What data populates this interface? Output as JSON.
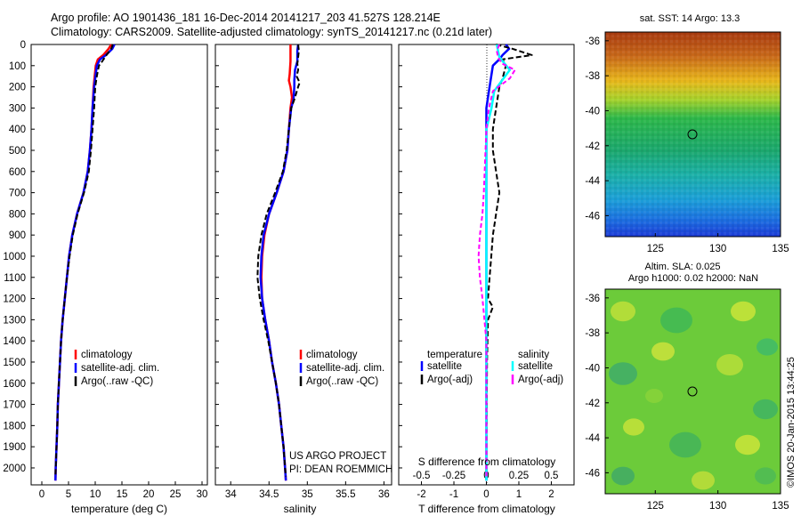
{
  "header": {
    "line1": "Argo profile: AO 1901436_181 16-Dec-2014 20141217_203 41.527S 128.214E",
    "line2": "Climatology: CARS2009. Satellite-adjusted climatology: synTS_20141217.nc (0.21d later)"
  },
  "annotation": {
    "project": "US ARGO PROJECT",
    "pi": "PI: DEAN ROEMMICH"
  },
  "map_sst": {
    "title": "sat. SST: 14 Argo: 13.3",
    "xticks": [
      "125",
      "130",
      "135"
    ],
    "yticks": [
      "-36",
      "-38",
      "-40",
      "-42",
      "-44",
      "-46"
    ]
  },
  "map_sla": {
    "title1": "Altim. SLA: 0.025",
    "title2": "Argo h1000: 0.02 h2000: NaN",
    "xticks": [
      "125",
      "130",
      "135"
    ],
    "yticks": [
      "-36",
      "-38",
      "-40",
      "-42",
      "-44",
      "-46"
    ]
  },
  "credit": "©IMOS 20-Jan-2015 13:44:25",
  "colors": {
    "climatology": "#ff0000",
    "satellite": "#0000ff",
    "argo": "#000000",
    "temp_sat": "#0000ff",
    "sal_sat": "#00ffff",
    "sal_argo": "#ff00ff"
  },
  "chart_data": [
    {
      "type": "line",
      "xlabel": "temperature (deg C)",
      "ylabel": "",
      "xlim": [
        -2,
        31
      ],
      "ylim": [
        0,
        2080
      ],
      "y_reversed": true,
      "xticks": [
        "0",
        "5",
        "10",
        "15",
        "20",
        "25",
        "30"
      ],
      "xtick_values": [
        0,
        5,
        10,
        15,
        20,
        25,
        30
      ],
      "yticks": [
        "0",
        "100",
        "200",
        "300",
        "400",
        "500",
        "600",
        "700",
        "800",
        "900",
        "1000",
        "1100",
        "1200",
        "1300",
        "1400",
        "1500",
        "1600",
        "1700",
        "1800",
        "1900",
        "2000"
      ],
      "legend": [
        "climatology",
        "satellite-adj. clim.",
        "Argo(..raw -QC)"
      ],
      "series": [
        {
          "name": "climatology",
          "style": "red",
          "points": [
            [
              13,
              0
            ],
            [
              12.5,
              20
            ],
            [
              11.5,
              50
            ],
            [
              10.5,
              70
            ],
            [
              10.1,
              100
            ],
            [
              9.7,
              200
            ],
            [
              9.5,
              300
            ],
            [
              9.3,
              400
            ],
            [
              9.0,
              500
            ],
            [
              8.6,
              600
            ],
            [
              7.8,
              700
            ],
            [
              6.6,
              800
            ],
            [
              5.7,
              900
            ],
            [
              5.1,
              1000
            ],
            [
              4.7,
              1100
            ],
            [
              4.3,
              1200
            ],
            [
              3.9,
              1300
            ],
            [
              3.6,
              1400
            ],
            [
              3.4,
              1500
            ],
            [
              3.2,
              1600
            ],
            [
              3.0,
              1700
            ],
            [
              2.9,
              1800
            ],
            [
              2.75,
              1900
            ],
            [
              2.6,
              2000
            ],
            [
              2.55,
              2060
            ]
          ]
        },
        {
          "name": "satellite-adj. clim.",
          "style": "blue",
          "points": [
            [
              13.6,
              0
            ],
            [
              13.2,
              20
            ],
            [
              12.0,
              50
            ],
            [
              10.9,
              70
            ],
            [
              10.3,
              100
            ],
            [
              9.8,
              200
            ],
            [
              9.5,
              300
            ],
            [
              9.3,
              400
            ],
            [
              9.0,
              500
            ],
            [
              8.6,
              600
            ],
            [
              7.8,
              700
            ],
            [
              6.6,
              800
            ],
            [
              5.7,
              900
            ],
            [
              5.1,
              1000
            ],
            [
              4.7,
              1100
            ],
            [
              4.3,
              1200
            ],
            [
              3.9,
              1300
            ],
            [
              3.6,
              1400
            ],
            [
              3.4,
              1500
            ],
            [
              3.2,
              1600
            ],
            [
              3.0,
              1700
            ],
            [
              2.9,
              1800
            ],
            [
              2.75,
              1900
            ],
            [
              2.6,
              2000
            ],
            [
              2.55,
              2060
            ]
          ]
        },
        {
          "name": "Argo(..raw -QC)",
          "style": "black-dashed",
          "points": [
            [
              13.3,
              0
            ],
            [
              13.0,
              20
            ],
            [
              12.1,
              50
            ],
            [
              11.3,
              80
            ],
            [
              10.7,
              100
            ],
            [
              10.3,
              150
            ],
            [
              10.0,
              200
            ],
            [
              9.8,
              300
            ],
            [
              9.5,
              400
            ],
            [
              9.2,
              500
            ],
            [
              8.8,
              600
            ],
            [
              7.9,
              700
            ],
            [
              6.7,
              800
            ],
            [
              5.8,
              900
            ],
            [
              5.2,
              1000
            ],
            [
              4.7,
              1100
            ],
            [
              4.3,
              1200
            ],
            [
              3.9,
              1300
            ],
            [
              3.6,
              1400
            ],
            [
              3.4,
              1500
            ],
            [
              3.2,
              1600
            ],
            [
              3.0,
              1700
            ],
            [
              2.9,
              1800
            ],
            [
              2.75,
              1900
            ],
            [
              2.6,
              2000
            ],
            [
              2.55,
              2040
            ]
          ]
        }
      ]
    },
    {
      "type": "line",
      "xlabel": "salinity",
      "ylabel": "",
      "xlim": [
        33.8,
        36.1
      ],
      "ylim": [
        0,
        2080
      ],
      "y_reversed": true,
      "xticks": [
        "34",
        "34.5",
        "35",
        "35.5",
        "36"
      ],
      "xtick_values": [
        34,
        34.5,
        35,
        35.5,
        36
      ],
      "legend": [
        "climatology",
        "satellite-adj. clim.",
        "Argo(..raw -QC)"
      ],
      "series": [
        {
          "name": "climatology",
          "style": "red",
          "points": [
            [
              34.78,
              0
            ],
            [
              34.78,
              80
            ],
            [
              34.77,
              140
            ],
            [
              34.76,
              170
            ],
            [
              34.78,
              200
            ],
            [
              34.8,
              250
            ],
            [
              34.78,
              300
            ],
            [
              34.76,
              400
            ],
            [
              34.74,
              500
            ],
            [
              34.69,
              600
            ],
            [
              34.6,
              700
            ],
            [
              34.5,
              800
            ],
            [
              34.44,
              900
            ],
            [
              34.41,
              1000
            ],
            [
              34.4,
              1100
            ],
            [
              34.41,
              1200
            ],
            [
              34.45,
              1300
            ],
            [
              34.5,
              1400
            ],
            [
              34.54,
              1500
            ],
            [
              34.59,
              1600
            ],
            [
              34.63,
              1700
            ],
            [
              34.66,
              1800
            ],
            [
              34.69,
              1900
            ],
            [
              34.71,
              2000
            ],
            [
              34.72,
              2060
            ]
          ]
        },
        {
          "name": "satellite-adj. clim.",
          "style": "blue",
          "points": [
            [
              34.88,
              0
            ],
            [
              34.87,
              30
            ],
            [
              34.87,
              80
            ],
            [
              34.84,
              120
            ],
            [
              34.83,
              170
            ],
            [
              34.83,
              200
            ],
            [
              34.82,
              260
            ],
            [
              34.79,
              300
            ],
            [
              34.76,
              400
            ],
            [
              34.74,
              500
            ],
            [
              34.69,
              600
            ],
            [
              34.6,
              700
            ],
            [
              34.5,
              800
            ],
            [
              34.43,
              900
            ],
            [
              34.4,
              1000
            ],
            [
              34.39,
              1100
            ],
            [
              34.41,
              1200
            ],
            [
              34.45,
              1300
            ],
            [
              34.5,
              1400
            ],
            [
              34.54,
              1500
            ],
            [
              34.59,
              1600
            ],
            [
              34.63,
              1700
            ],
            [
              34.66,
              1800
            ],
            [
              34.69,
              1900
            ],
            [
              34.71,
              2000
            ],
            [
              34.72,
              2060
            ]
          ]
        },
        {
          "name": "Argo(..raw -QC)",
          "style": "black-dashed",
          "points": [
            [
              34.88,
              0
            ],
            [
              34.89,
              30
            ],
            [
              34.88,
              60
            ],
            [
              34.87,
              90
            ],
            [
              34.88,
              120
            ],
            [
              34.86,
              150
            ],
            [
              34.9,
              180
            ],
            [
              34.88,
              200
            ],
            [
              34.83,
              260
            ],
            [
              34.79,
              300
            ],
            [
              34.76,
              400
            ],
            [
              34.73,
              500
            ],
            [
              34.68,
              600
            ],
            [
              34.58,
              700
            ],
            [
              34.47,
              800
            ],
            [
              34.4,
              900
            ],
            [
              34.36,
              1000
            ],
            [
              34.35,
              1100
            ],
            [
              34.38,
              1200
            ],
            [
              34.43,
              1300
            ],
            [
              34.49,
              1400
            ],
            [
              34.54,
              1500
            ],
            [
              34.59,
              1600
            ],
            [
              34.63,
              1700
            ],
            [
              34.66,
              1800
            ],
            [
              34.69,
              1900
            ],
            [
              34.71,
              2000
            ],
            [
              34.72,
              2040
            ]
          ]
        }
      ]
    },
    {
      "type": "line",
      "xlabel": "T difference from climatology",
      "xlabel_top": "S difference from climatology",
      "xlim": [
        -2.7,
        2.7
      ],
      "ylim": [
        0,
        2080
      ],
      "y_reversed": true,
      "xticks": [
        "-2",
        "-1",
        "0",
        "1",
        "2"
      ],
      "xtick_values": [
        -2,
        -1,
        0,
        1,
        2
      ],
      "xticks_top": [
        "-0.5",
        "-0.25",
        "0",
        "0.25",
        "0.5"
      ],
      "xtick_values_top": [
        -0.5,
        -0.25,
        0,
        0.25,
        0.5
      ],
      "legend": {
        "temperature_header": "temperature",
        "salinity_header": "salinity",
        "temp_entries": [
          "satellite",
          "Argo(-adj)"
        ],
        "sal_entries": [
          "satellite",
          "Argo(-adj)"
        ]
      },
      "series": [
        {
          "name": "satellite",
          "group": "temperature",
          "style": "blue",
          "points": [
            [
              0.6,
              0
            ],
            [
              0.7,
              20
            ],
            [
              0.5,
              50
            ],
            [
              0.4,
              70
            ],
            [
              0.2,
              100
            ],
            [
              0.1,
              200
            ],
            [
              0,
              300
            ],
            [
              0,
              400
            ],
            [
              0,
              500
            ],
            [
              0,
              600
            ],
            [
              0,
              700
            ],
            [
              0,
              800
            ],
            [
              0,
              900
            ],
            [
              0,
              1000
            ],
            [
              0,
              1100
            ],
            [
              0,
              1200
            ],
            [
              0,
              1300
            ],
            [
              0,
              1500
            ],
            [
              0,
              2060
            ]
          ]
        },
        {
          "name": "Argo(-adj)",
          "group": "temperature",
          "style": "black-dashed",
          "points": [
            [
              0.3,
              0
            ],
            [
              0.8,
              20
            ],
            [
              1.4,
              50
            ],
            [
              0.5,
              70
            ],
            [
              0.6,
              100
            ],
            [
              0.5,
              160
            ],
            [
              0.4,
              200
            ],
            [
              0.3,
              300
            ],
            [
              0.2,
              400
            ],
            [
              0.2,
              500
            ],
            [
              0.3,
              600
            ],
            [
              0.4,
              700
            ],
            [
              0.3,
              800
            ],
            [
              0.2,
              900
            ],
            [
              0.15,
              1000
            ],
            [
              0.1,
              1100
            ],
            [
              0.05,
              1200
            ],
            [
              0.2,
              1240
            ],
            [
              0.05,
              1300
            ],
            [
              0.02,
              1500
            ],
            [
              0,
              2040
            ]
          ]
        },
        {
          "name": "satellite",
          "group": "salinity",
          "style": "cyan",
          "points": [
            [
              0.08,
              0
            ],
            [
              0.09,
              30
            ],
            [
              0.1,
              60
            ],
            [
              0.14,
              90
            ],
            [
              0.18,
              120
            ],
            [
              0.12,
              170
            ],
            [
              0.06,
              220
            ],
            [
              0.04,
              300
            ],
            [
              0,
              400
            ],
            [
              0,
              600
            ],
            [
              0,
              800
            ],
            [
              0,
              1000
            ],
            [
              0,
              1200
            ],
            [
              0,
              1500
            ],
            [
              0,
              2060
            ]
          ]
        },
        {
          "name": "Argo(-adj)",
          "group": "salinity",
          "style": "magenta-dashed",
          "points": [
            [
              0.1,
              0
            ],
            [
              0.08,
              30
            ],
            [
              0.09,
              60
            ],
            [
              0.12,
              90
            ],
            [
              0.22,
              120
            ],
            [
              0.18,
              160
            ],
            [
              0.05,
              220
            ],
            [
              0.02,
              300
            ],
            [
              0,
              400
            ],
            [
              -0.02,
              700
            ],
            [
              -0.03,
              800
            ],
            [
              -0.05,
              900
            ],
            [
              -0.06,
              1000
            ],
            [
              -0.05,
              1100
            ],
            [
              -0.03,
              1200
            ],
            [
              0,
              1400
            ],
            [
              0,
              2040
            ]
          ]
        }
      ]
    }
  ]
}
